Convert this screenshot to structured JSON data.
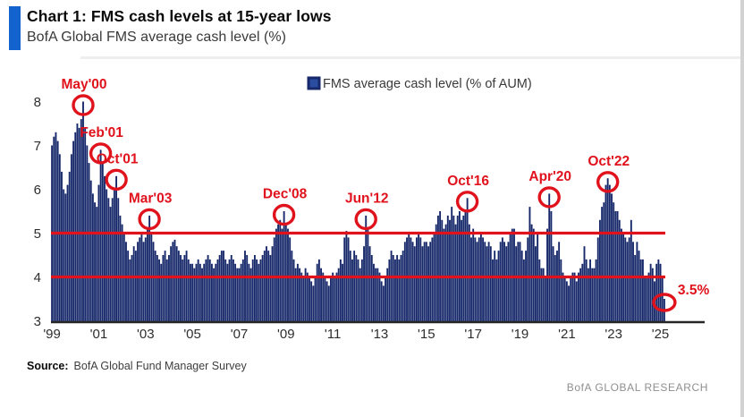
{
  "header": {
    "title": "Chart 1: FMS cash levels at 15-year lows",
    "subtitle": "BofA Global FMS average cash level (%)"
  },
  "legend": {
    "label": "FMS average cash level (% of AUM)"
  },
  "chart_data": {
    "type": "bar",
    "title": "BofA Global FMS average cash level (%)",
    "series_name": "FMS average cash level (% of AUM)",
    "frequency": "monthly",
    "x_start": "1999-01",
    "x_end": "2025-03",
    "ylim": [
      3,
      8
    ],
    "yticks": [
      3,
      4,
      5,
      6,
      7,
      8
    ],
    "xticks": [
      "'99",
      "'01",
      "'03",
      "'05",
      "'07",
      "'09",
      "'11",
      "'13",
      "'15",
      "'17",
      "'19",
      "'21",
      "'23",
      "'25"
    ],
    "xtick_month_step": 24,
    "hlines": [
      5,
      4
    ],
    "grid": false,
    "legend_position": "top-center",
    "bar_color": "#16286a",
    "highlight_color": "#e0121c",
    "values": [
      7.0,
      7.2,
      7.3,
      7.1,
      6.8,
      6.4,
      6.0,
      5.9,
      6.1,
      6.4,
      6.8,
      7.1,
      7.3,
      7.5,
      7.4,
      7.6,
      8.0,
      7.4,
      7.0,
      6.6,
      6.2,
      5.9,
      5.7,
      5.6,
      6.1,
      6.9,
      6.6,
      6.3,
      6.0,
      5.8,
      5.6,
      5.8,
      6.0,
      6.3,
      5.8,
      5.4,
      5.2,
      5.0,
      4.8,
      4.6,
      4.4,
      4.5,
      4.7,
      4.6,
      4.8,
      4.9,
      5.0,
      4.8,
      4.9,
      5.1,
      5.4,
      5.0,
      4.8,
      4.6,
      4.5,
      4.4,
      4.3,
      4.5,
      4.6,
      4.4,
      4.5,
      4.7,
      4.8,
      4.85,
      4.7,
      4.6,
      4.5,
      4.4,
      4.5,
      4.6,
      4.4,
      4.3,
      4.3,
      4.2,
      4.3,
      4.4,
      4.3,
      4.2,
      4.3,
      4.4,
      4.5,
      4.4,
      4.3,
      4.2,
      4.3,
      4.4,
      4.5,
      4.6,
      4.6,
      4.4,
      4.3,
      4.4,
      4.5,
      4.4,
      4.3,
      4.2,
      4.2,
      4.3,
      4.4,
      4.6,
      4.5,
      4.3,
      4.2,
      4.4,
      4.5,
      4.4,
      4.3,
      4.4,
      4.5,
      4.6,
      4.7,
      4.6,
      4.5,
      4.7,
      4.9,
      5.1,
      5.2,
      5.3,
      5.1,
      5.5,
      5.2,
      5.1,
      4.9,
      4.6,
      4.4,
      4.2,
      4.3,
      4.2,
      4.1,
      4.0,
      4.2,
      4.1,
      4.0,
      3.9,
      3.8,
      4.0,
      4.3,
      4.4,
      4.2,
      4.1,
      4.0,
      3.9,
      3.8,
      4.0,
      4.1,
      4.0,
      4.1,
      4.2,
      4.4,
      4.3,
      4.9,
      5.05,
      4.9,
      4.6,
      4.4,
      4.6,
      4.5,
      4.4,
      4.2,
      4.4,
      4.7,
      5.4,
      5.1,
      4.7,
      4.5,
      4.3,
      4.2,
      4.2,
      4.1,
      3.9,
      3.8,
      4.0,
      4.2,
      4.4,
      4.6,
      4.5,
      4.4,
      4.5,
      4.4,
      4.5,
      4.6,
      4.8,
      4.9,
      5.0,
      4.9,
      4.8,
      4.7,
      4.9,
      5.0,
      4.9,
      4.7,
      4.8,
      4.8,
      4.7,
      4.8,
      4.9,
      5.0,
      5.2,
      5.4,
      5.5,
      5.3,
      5.1,
      5.2,
      5.4,
      5.3,
      5.6,
      5.4,
      5.2,
      5.4,
      5.5,
      5.3,
      5.4,
      5.5,
      5.8,
      5.2,
      4.9,
      5.1,
      4.9,
      4.8,
      4.9,
      5.0,
      4.9,
      4.8,
      4.7,
      4.8,
      4.7,
      4.4,
      4.6,
      4.4,
      4.6,
      4.8,
      4.9,
      4.8,
      4.7,
      4.8,
      5.0,
      5.1,
      5.1,
      4.7,
      4.8,
      4.8,
      4.6,
      4.4,
      4.6,
      4.9,
      5.6,
      5.2,
      5.1,
      4.7,
      5.0,
      4.4,
      4.2,
      4.2,
      4.0,
      5.1,
      5.9,
      5.5,
      4.7,
      4.5,
      4.6,
      4.8,
      4.4,
      4.1,
      4.0,
      3.9,
      3.8,
      4.0,
      4.1,
      4.1,
      3.9,
      4.1,
      4.2,
      4.3,
      4.7,
      4.4,
      4.2,
      4.4,
      4.2,
      4.2,
      4.4,
      4.9,
      5.3,
      5.6,
      5.7,
      6.1,
      6.25,
      6.1,
      5.9,
      5.7,
      5.5,
      5.5,
      5.3,
      5.1,
      5.0,
      4.9,
      4.8,
      4.9,
      5.3,
      4.8,
      4.5,
      4.8,
      4.6,
      4.4,
      4.4,
      4.0,
      4.0,
      4.1,
      4.3,
      4.2,
      3.9,
      4.3,
      4.4,
      4.3,
      4.0,
      3.5
    ],
    "annotations": [
      {
        "label": "May'00",
        "month": "2000-05",
        "index": 16,
        "value": 8.0
      },
      {
        "label": "Feb'01",
        "month": "2001-02",
        "index": 25,
        "value": 6.9
      },
      {
        "label": "Oct'01",
        "month": "2001-10",
        "index": 33,
        "value": 6.3
      },
      {
        "label": "Mar'03",
        "month": "2003-03",
        "index": 50,
        "value": 5.4
      },
      {
        "label": "Dec'08",
        "month": "2008-12",
        "index": 119,
        "value": 5.5
      },
      {
        "label": "Jun'12",
        "month": "2012-06",
        "index": 161,
        "value": 5.4
      },
      {
        "label": "Oct'16",
        "month": "2016-10",
        "index": 213,
        "value": 5.8
      },
      {
        "label": "Apr'20",
        "month": "2020-04",
        "index": 255,
        "value": 5.9
      },
      {
        "label": "Oct'22",
        "month": "2022-10",
        "index": 285,
        "value": 6.25
      },
      {
        "label": "3.5%",
        "month": "2025-03",
        "index": 314,
        "value": 3.5,
        "label_position": "right"
      }
    ]
  },
  "footer": {
    "source_label": "Source:",
    "source_text": "BofA Global Fund Manager Survey",
    "brand": "BofA GLOBAL RESEARCH"
  }
}
